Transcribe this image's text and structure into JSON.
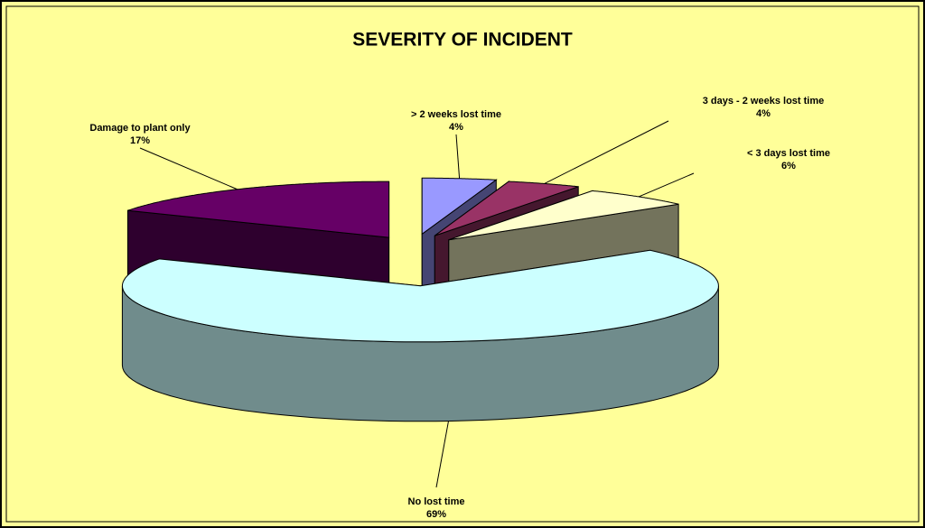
{
  "chart_data": {
    "type": "pie",
    "title": "SEVERITY OF INCIDENT",
    "categories": [
      "> 2 weeks lost time",
      "3 days - 2 weeks lost time",
      "< 3 days lost time",
      "No lost time",
      "Damage to plant only"
    ],
    "values": [
      4,
      4,
      6,
      69,
      17
    ],
    "value_labels": [
      "4%",
      "4%",
      "6%",
      "69%",
      "17%"
    ],
    "colors": [
      "#9999ff",
      "#993366",
      "#ffffcc",
      "#ccffff",
      "#660066"
    ],
    "background": "#ffff99"
  }
}
